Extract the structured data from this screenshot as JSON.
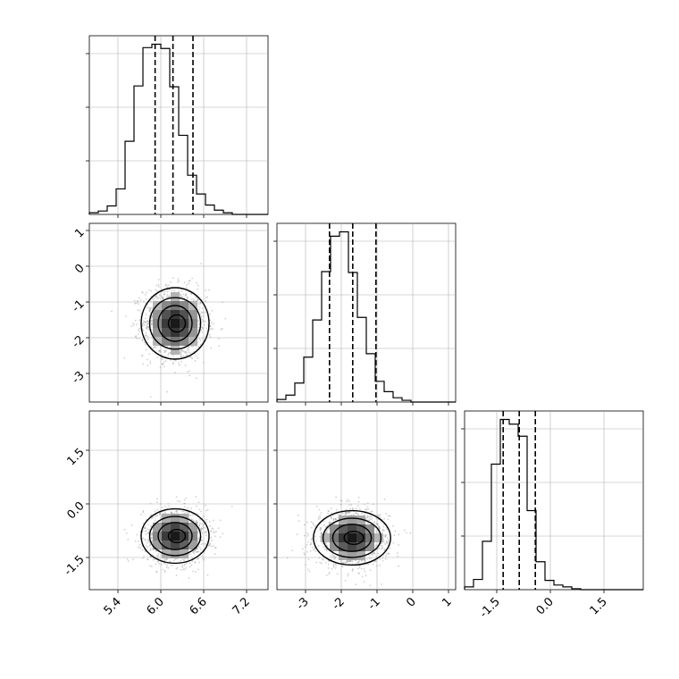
{
  "chart_data": {
    "type": "corner",
    "title": "",
    "grid": true,
    "parameters": [
      {
        "range": [
          5.0,
          7.5
        ],
        "ticks": [
          "5.4",
          "6.0",
          "6.6",
          "7.2"
        ],
        "tick_values": [
          5.4,
          6.0,
          6.6,
          7.2
        ],
        "quantiles": [
          5.92,
          6.17,
          6.45
        ]
      },
      {
        "range": [
          -3.8,
          1.2
        ],
        "ticks": [
          "-3",
          "-2",
          "-1",
          "0",
          "1"
        ],
        "tick_values": [
          -3,
          -2,
          -1,
          0,
          1
        ],
        "quantiles": [
          -2.33,
          -1.68,
          -1.03
        ]
      },
      {
        "range": [
          -2.4,
          2.6
        ],
        "ticks": [
          "-1.5",
          "0.0",
          "1.5"
        ],
        "tick_values": [
          -1.5,
          0.0,
          1.5
        ],
        "quantiles": [
          -1.32,
          -0.87,
          -0.42
        ]
      }
    ],
    "histograms": [
      {
        "param": 0,
        "bin_edges_start": 5.0,
        "bin_width": 0.125,
        "counts": [
          2,
          4,
          10,
          30,
          86,
          151,
          196,
          200,
          195,
          150,
          93,
          46,
          24,
          11,
          5,
          2,
          0,
          0,
          0,
          0
        ]
      },
      {
        "param": 1,
        "bin_edges_start": -3.8,
        "bin_width": 0.25,
        "counts": [
          3,
          8,
          22,
          52,
          95,
          151,
          192,
          197,
          150,
          98,
          56,
          24,
          12,
          5,
          2,
          0,
          0,
          0,
          0,
          0
        ]
      },
      {
        "param": 2,
        "bin_edges_start": -2.4,
        "bin_width": 0.25,
        "counts": [
          3,
          11,
          52,
          135,
          183,
          178,
          165,
          85,
          30,
          10,
          5,
          3,
          1,
          0,
          0,
          0,
          0,
          0,
          0,
          0
        ]
      }
    ],
    "pairs": [
      {
        "x": 0,
        "y": 1,
        "center": [
          6.2,
          -1.6
        ],
        "sigma": [
          0.22,
          0.5
        ],
        "rho": -0.05,
        "contour_levels": [
          "0.5",
          "1.0",
          "1.5",
          "2.0"
        ]
      },
      {
        "x": 0,
        "y": 2,
        "center": [
          6.2,
          -0.9
        ],
        "sigma": [
          0.22,
          0.38
        ],
        "rho": 0.0,
        "contour_levels": [
          "0.5",
          "1.0",
          "1.5",
          "2.0"
        ]
      },
      {
        "x": 1,
        "y": 2,
        "center": [
          -1.7,
          -0.95
        ],
        "sigma": [
          0.5,
          0.38
        ],
        "rho": 0.0,
        "contour_levels": [
          "0.5",
          "1.0",
          "1.5",
          "2.0"
        ]
      }
    ]
  }
}
